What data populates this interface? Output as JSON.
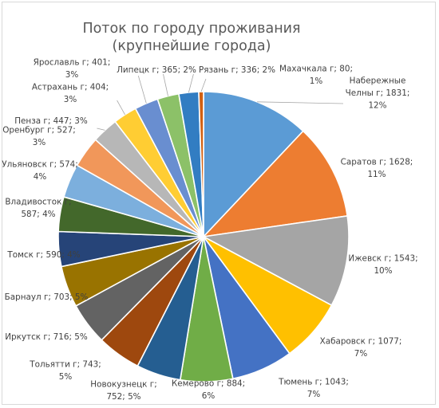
{
  "chart_data": {
    "type": "pie",
    "title": "Поток по городу проживания (крупнейшие города)",
    "title_lines": [
      "Поток по городу проживания",
      "(крупнейшие города)"
    ],
    "series": [
      {
        "name": "Набережные Челны г",
        "value": 1831,
        "percent": "12%",
        "color": "#5b9bd5",
        "label_lines": [
          "Набережные",
          "Челны г; 1831;",
          "12%"
        ]
      },
      {
        "name": "Саратов г",
        "value": 1628,
        "percent": "11%",
        "color": "#ed7d31",
        "label_lines": [
          "Саратов г; 1628;",
          "11%"
        ]
      },
      {
        "name": "Ижевск г",
        "value": 1543,
        "percent": "10%",
        "color": "#a5a5a5",
        "label_lines": [
          "Ижевск г; 1543;",
          "10%"
        ]
      },
      {
        "name": "Хабаровск г",
        "value": 1077,
        "percent": "7%",
        "color": "#ffc000",
        "label_lines": [
          "Хабаровск г; 1077;",
          "7%"
        ]
      },
      {
        "name": "Тюмень г",
        "value": 1043,
        "percent": "7%",
        "color": "#4472c4",
        "label_lines": [
          "Тюмень г; 1043;",
          "7%"
        ]
      },
      {
        "name": "Кемерово г",
        "value": 884,
        "percent": "6%",
        "color": "#70ad47",
        "label_lines": [
          "Кемерово г; 884;",
          "6%"
        ]
      },
      {
        "name": "Новокузнецк г",
        "value": 752,
        "percent": "5%",
        "color": "#255e91",
        "label_lines": [
          "Новокузнецк г;",
          "752; 5%"
        ]
      },
      {
        "name": "Тольятти г",
        "value": 743,
        "percent": "5%",
        "color": "#9e480e",
        "label_lines": [
          "Тольятти г; 743;",
          "5%"
        ]
      },
      {
        "name": "Иркутск г",
        "value": 716,
        "percent": "5%",
        "color": "#636363",
        "label_lines": [
          "Иркутск г; 716; 5%"
        ]
      },
      {
        "name": "Барнаул г",
        "value": 703,
        "percent": "5%",
        "color": "#997300",
        "label_lines": [
          "Барнаул г; 703; 5%"
        ]
      },
      {
        "name": "Томск г",
        "value": 590,
        "percent": "4%",
        "color": "#264478",
        "label_lines": [
          "Томск г; 590; 4%"
        ]
      },
      {
        "name": "Владивосток г",
        "value": 587,
        "percent": "4%",
        "color": "#43682b",
        "label_lines": [
          "Владивосток г;",
          "587; 4%"
        ]
      },
      {
        "name": "Ульяновск г",
        "value": 574,
        "percent": "4%",
        "color": "#7cafdd",
        "label_lines": [
          "Ульяновск г; 574;",
          "4%"
        ]
      },
      {
        "name": "Оренбург г",
        "value": 527,
        "percent": "3%",
        "color": "#f1975a",
        "label_lines": [
          "Оренбург г; 527;",
          "3%"
        ]
      },
      {
        "name": "Пенза г",
        "value": 447,
        "percent": "3%",
        "color": "#b7b7b7",
        "label_lines": [
          "Пенза г; 447; 3%"
        ]
      },
      {
        "name": "Астрахань г",
        "value": 404,
        "percent": "3%",
        "color": "#ffcd33",
        "label_lines": [
          "Астрахань г; 404;",
          "3%"
        ]
      },
      {
        "name": "Ярославль г",
        "value": 401,
        "percent": "3%",
        "color": "#698ed0",
        "label_lines": [
          "Ярославль г; 401;",
          "3%"
        ]
      },
      {
        "name": "Липецк г",
        "value": 365,
        "percent": "2%",
        "color": "#8cc168",
        "label_lines": [
          "Липецк г; 365; 2%"
        ]
      },
      {
        "name": "Рязань г",
        "value": 336,
        "percent": "2%",
        "color": "#327dc2",
        "label_lines": [
          "Рязань г; 336; 2%"
        ]
      },
      {
        "name": "Махачкала г",
        "value": 80,
        "percent": "1%",
        "color": "#d26012",
        "label_lines": [
          "Махачкала г; 80;",
          "1%"
        ]
      }
    ],
    "legend": "none",
    "data_labels": "category; value; percent"
  }
}
